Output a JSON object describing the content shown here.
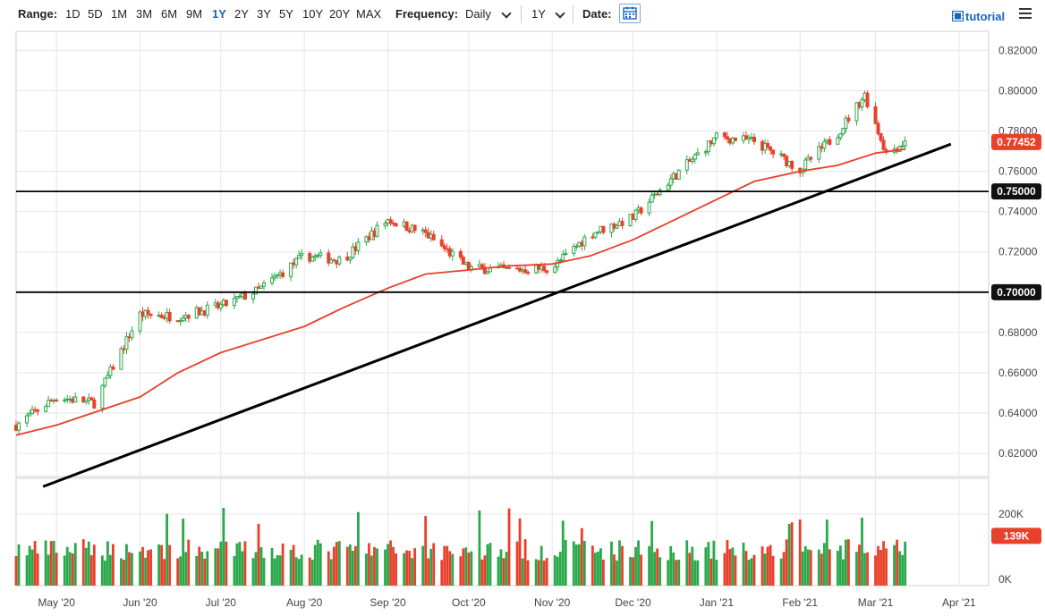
{
  "toolbar": {
    "range_label": "Range:",
    "ranges": [
      "1D",
      "5D",
      "1M",
      "3M",
      "6M",
      "9M",
      "1Y",
      "2Y",
      "3Y",
      "5Y",
      "10Y",
      "20Y",
      "MAX"
    ],
    "active_range": "1Y",
    "frequency_label": "Frequency:",
    "frequency_value": "Daily",
    "period_value": "1Y",
    "date_label": "Date:",
    "tutorial_label": "tutorial"
  },
  "colors": {
    "up": "#2aa84a",
    "down": "#e8402a",
    "ma": "#e8402a",
    "price_badge": "#e8402a",
    "level_badge": "#111111",
    "accent": "#1565c0"
  },
  "chart_data": {
    "type": "candlestick",
    "instrument_note": "",
    "x_tick_labels": [
      "May '20",
      "Jun '20",
      "Jul '20",
      "Aug '20",
      "Sep '20",
      "Oct '20",
      "Nov '20",
      "Dec '20",
      "Jan '21",
      "Feb '21",
      "Mar '21",
      "Apr '21"
    ],
    "x_tick_dates": [
      "2020-05-01",
      "2020-06-01",
      "2020-07-01",
      "2020-08-01",
      "2020-09-01",
      "2020-10-01",
      "2020-11-01",
      "2020-12-01",
      "2021-01-01",
      "2021-02-01",
      "2021-03-01",
      "2021-04-01"
    ],
    "x_range": [
      "2020-04-16",
      "2021-04-12"
    ],
    "y_tick_labels": [
      "0.62000",
      "0.64000",
      "0.66000",
      "0.68000",
      "0.70000",
      "0.72000",
      "0.74000",
      "0.76000",
      "0.78000",
      "0.80000",
      "0.82000"
    ],
    "y_range": [
      0.6085,
      0.8295
    ],
    "grid": true,
    "price_series_monthly_closes": [
      [
        "2020-04-16",
        0.634
      ],
      [
        "2020-05-01",
        0.648
      ],
      [
        "2020-05-15",
        0.645
      ],
      [
        "2020-06-01",
        0.689
      ],
      [
        "2020-06-15",
        0.688
      ],
      [
        "2020-07-01",
        0.693
      ],
      [
        "2020-07-15",
        0.701
      ],
      [
        "2020-08-01",
        0.718
      ],
      [
        "2020-08-15",
        0.716
      ],
      [
        "2020-09-01",
        0.736
      ],
      [
        "2020-09-15",
        0.729
      ],
      [
        "2020-10-01",
        0.712
      ],
      [
        "2020-10-15",
        0.711
      ],
      [
        "2020-11-01",
        0.712
      ],
      [
        "2020-11-15",
        0.729
      ],
      [
        "2020-12-01",
        0.737
      ],
      [
        "2020-12-15",
        0.756
      ],
      [
        "2021-01-01",
        0.777
      ],
      [
        "2021-01-15",
        0.775
      ],
      [
        "2021-02-01",
        0.761
      ],
      [
        "2021-02-15",
        0.779
      ],
      [
        "2021-02-25",
        0.798
      ],
      [
        "2021-03-05",
        0.769
      ],
      [
        "2021-03-12",
        0.7745
      ]
    ],
    "moving_average": [
      [
        "2020-04-16",
        0.629
      ],
      [
        "2020-05-01",
        0.634
      ],
      [
        "2020-06-01",
        0.648
      ],
      [
        "2020-06-15",
        0.66
      ],
      [
        "2020-07-01",
        0.67
      ],
      [
        "2020-08-01",
        0.683
      ],
      [
        "2020-08-15",
        0.692
      ],
      [
        "2020-09-01",
        0.702
      ],
      [
        "2020-09-15",
        0.709
      ],
      [
        "2020-10-01",
        0.711
      ],
      [
        "2020-10-15",
        0.713
      ],
      [
        "2020-11-01",
        0.714
      ],
      [
        "2020-11-15",
        0.718
      ],
      [
        "2020-12-01",
        0.726
      ],
      [
        "2020-12-15",
        0.735
      ],
      [
        "2021-01-01",
        0.746
      ],
      [
        "2021-01-15",
        0.755
      ],
      [
        "2021-02-01",
        0.76
      ],
      [
        "2021-02-15",
        0.763
      ],
      [
        "2021-03-01",
        0.769
      ],
      [
        "2021-03-12",
        0.771
      ]
    ],
    "trend_line": [
      [
        "2020-04-26",
        0.6035
      ],
      [
        "2021-03-29",
        0.7735
      ]
    ],
    "horizontal_levels": [
      0.75,
      0.7
    ],
    "level_labels": [
      "0.75000",
      "0.70000"
    ],
    "current_price": 0.77452,
    "current_price_label": "0.77452",
    "volume": {
      "tick_labels": [
        "200K",
        "0K"
      ],
      "current_label": "139K",
      "max": 300000
    }
  }
}
